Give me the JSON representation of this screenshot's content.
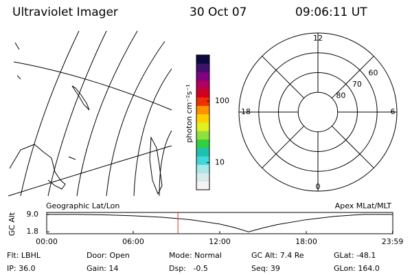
{
  "header": {
    "title": "Ultraviolet Imager",
    "date": "30 Oct 07",
    "time": "09:06:11 UT"
  },
  "map": {
    "label": "Geographic Lat/Lon"
  },
  "colorbar": {
    "label": "photon cm⁻²s⁻¹",
    "log": true,
    "ylim": [
      3.6,
      565
    ],
    "yticks": [
      10,
      100
    ],
    "colors": [
      "#f4f4f4",
      "#d8eaea",
      "#a8e8e8",
      "#40d8d8",
      "#20c0b0",
      "#30d040",
      "#90e040",
      "#e0f020",
      "#ffd000",
      "#ff9000",
      "#f03000",
      "#d00020",
      "#b00060",
      "#800080",
      "#40106a",
      "#0a0a40"
    ]
  },
  "polar": {
    "label": "Apex MLat/MLT",
    "mlt_labels": [
      "12",
      "6",
      "0",
      "18"
    ],
    "lat_lim": [
      90,
      50
    ],
    "lat_circles": [
      50,
      60,
      70,
      80
    ],
    "lat_labels": [
      60,
      70,
      80
    ]
  },
  "chart_data": {
    "type": "line",
    "ylabel": "GC Alt",
    "x": [
      0,
      2,
      4,
      6,
      8,
      10,
      12,
      13,
      14,
      15,
      16,
      18,
      20,
      22,
      23.98
    ],
    "values": [
      9.0,
      9.0,
      8.8,
      8.4,
      7.8,
      6.8,
      5.0,
      3.6,
      1.8,
      3.4,
      4.8,
      6.8,
      8.2,
      9.0,
      9.0
    ],
    "color": "#000000",
    "marker_x": 9.103,
    "marker_color": "#e03030",
    "xlim": [
      0,
      24
    ],
    "xticks": [
      {
        "value": 0,
        "label": "00:00"
      },
      {
        "value": 6,
        "label": "06:00"
      },
      {
        "value": 12,
        "label": "12:00"
      },
      {
        "value": 18,
        "label": "18:00"
      },
      {
        "value": 23.98,
        "label": "23:59"
      }
    ],
    "ylim": [
      1.0,
      9.8
    ],
    "yticks": [
      1.8,
      {
        "value": 9.0,
        "label": "9.0"
      }
    ]
  },
  "info": [
    [
      "Flt: LBHL",
      "Door: Open",
      "Mode: Normal",
      "GC Alt: 7.4 Re",
      "GLat: -48.1"
    ],
    [
      "IP: 36.0",
      "Gain: 14",
      "Dsp:   -0.5",
      "Seq: 39",
      "GLon: 164.0"
    ]
  ]
}
